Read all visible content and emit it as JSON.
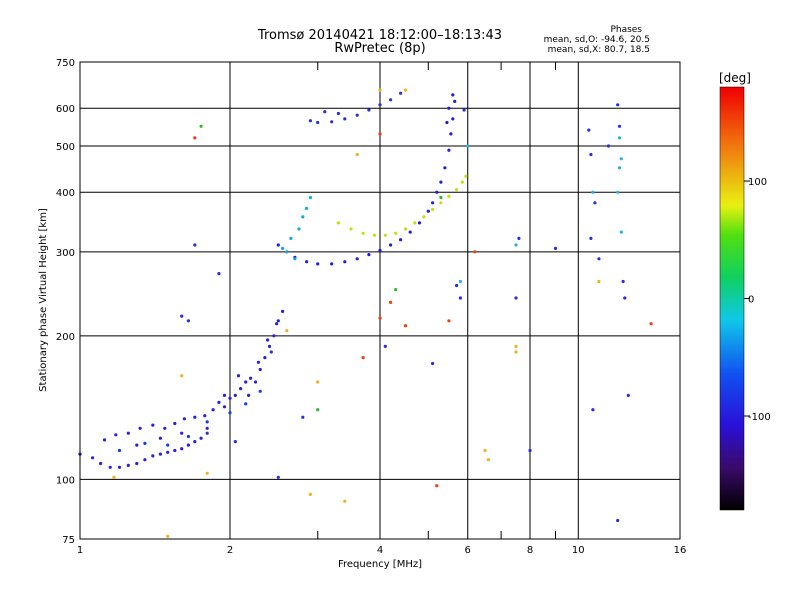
{
  "chart_data": {
    "type": "scatter",
    "title": "Tromsø 20140421 18:12:00–18:13:43",
    "subtitle": "RwPretec (8p)",
    "xlabel": "Frequency [MHz]",
    "ylabel": "Stationary phase Virtual Height [km]",
    "x_scale": "log",
    "y_scale": "log",
    "xlim": [
      1,
      16
    ],
    "ylim": [
      75,
      750
    ],
    "x_ticks": [
      1,
      2,
      4,
      6,
      8,
      10,
      16
    ],
    "x_tick_labels": [
      "1",
      "2",
      "4",
      "6",
      "8",
      "10",
      "16"
    ],
    "x_minor": [
      3,
      5,
      7,
      9
    ],
    "y_ticks": [
      75,
      100,
      200,
      300,
      400,
      500,
      600,
      750
    ],
    "y_tick_labels": [
      "75",
      "100",
      "200",
      "300",
      "400",
      "500",
      "600",
      "750"
    ],
    "grid": true,
    "phases": {
      "header": "Phases",
      "o_mode": "mean, sd,O: -94.6, 20.5",
      "x_mode": "mean, sd,X:  80.7, 18.5"
    },
    "colorbar": {
      "label": "[deg]",
      "range": [
        -180,
        180
      ],
      "ticks": [
        100,
        0,
        -100
      ],
      "tick_labels": [
        "100",
        "0",
        "-100"
      ]
    },
    "series": [
      {
        "color": "#2a1ee0",
        "points": [
          [
            1.0,
            113
          ],
          [
            1.06,
            111
          ],
          [
            1.1,
            108
          ],
          [
            1.15,
            106
          ],
          [
            1.2,
            106
          ],
          [
            1.25,
            107
          ],
          [
            1.3,
            108
          ],
          [
            1.35,
            110
          ],
          [
            1.4,
            112
          ],
          [
            1.45,
            113
          ],
          [
            1.5,
            114
          ],
          [
            1.55,
            115
          ],
          [
            1.6,
            116
          ],
          [
            1.65,
            118
          ],
          [
            1.7,
            120
          ],
          [
            1.75,
            122
          ],
          [
            1.12,
            121
          ],
          [
            1.18,
            124
          ],
          [
            1.25,
            125
          ],
          [
            1.32,
            128
          ],
          [
            1.4,
            130
          ],
          [
            1.48,
            128
          ],
          [
            1.55,
            131
          ],
          [
            1.62,
            134
          ],
          [
            1.7,
            135
          ],
          [
            1.78,
            136
          ],
          [
            1.85,
            140
          ],
          [
            1.9,
            145
          ],
          [
            1.95,
            150
          ],
          [
            2.0,
            148
          ],
          [
            2.05,
            150
          ],
          [
            2.1,
            155
          ],
          [
            2.15,
            160
          ],
          [
            2.2,
            163
          ],
          [
            2.25,
            160
          ],
          [
            2.3,
            170
          ],
          [
            2.35,
            180
          ],
          [
            2.4,
            190
          ],
          [
            2.45,
            200
          ],
          [
            2.5,
            215
          ],
          [
            2.55,
            225
          ],
          [
            1.3,
            118
          ],
          [
            1.45,
            122
          ],
          [
            1.6,
            125
          ],
          [
            1.8,
            128
          ],
          [
            1.95,
            142
          ],
          [
            2.08,
            165
          ],
          [
            2.18,
            150
          ],
          [
            2.28,
            176
          ],
          [
            2.38,
            196
          ],
          [
            2.48,
            212
          ]
        ]
      },
      {
        "color": "#2020d8",
        "points": [
          [
            2.5,
            310
          ],
          [
            2.6,
            300
          ],
          [
            2.7,
            292
          ],
          [
            2.85,
            286
          ],
          [
            3.0,
            283
          ],
          [
            3.2,
            283
          ],
          [
            3.4,
            286
          ],
          [
            3.6,
            290
          ],
          [
            3.8,
            296
          ],
          [
            4.0,
            302
          ],
          [
            4.2,
            310
          ],
          [
            4.4,
            318
          ],
          [
            4.6,
            330
          ],
          [
            4.8,
            345
          ],
          [
            5.0,
            365
          ],
          [
            5.1,
            380
          ],
          [
            5.2,
            400
          ],
          [
            5.3,
            420
          ],
          [
            5.4,
            450
          ],
          [
            5.5,
            490
          ],
          [
            5.55,
            530
          ],
          [
            5.6,
            570
          ],
          [
            5.65,
            620
          ],
          [
            5.6,
            640
          ],
          [
            5.5,
            600
          ],
          [
            5.45,
            560
          ]
        ]
      },
      {
        "color": "#2a30d0",
        "points": [
          [
            2.9,
            565
          ],
          [
            3.0,
            560
          ],
          [
            3.2,
            562
          ],
          [
            3.4,
            570
          ],
          [
            3.6,
            580
          ],
          [
            3.8,
            595
          ],
          [
            4.0,
            610
          ],
          [
            4.2,
            625
          ],
          [
            4.4,
            645
          ],
          [
            3.1,
            590
          ],
          [
            3.3,
            585
          ]
        ]
      },
      {
        "color": "#12a8e0",
        "points": [
          [
            2.55,
            305
          ],
          [
            2.65,
            320
          ],
          [
            2.75,
            335
          ],
          [
            2.8,
            355
          ],
          [
            2.85,
            370
          ],
          [
            2.9,
            390
          ],
          [
            2.6,
            300
          ],
          [
            2.7,
            290
          ]
        ]
      },
      {
        "color": "#c8e00a",
        "points": [
          [
            3.3,
            345
          ],
          [
            3.5,
            335
          ],
          [
            3.7,
            328
          ],
          [
            3.9,
            325
          ],
          [
            4.1,
            325
          ],
          [
            4.3,
            328
          ],
          [
            4.5,
            335
          ],
          [
            4.7,
            345
          ],
          [
            4.9,
            355
          ],
          [
            5.1,
            368
          ],
          [
            5.3,
            380
          ],
          [
            5.5,
            392
          ],
          [
            5.7,
            405
          ],
          [
            5.85,
            420
          ],
          [
            5.95,
            432
          ]
        ]
      },
      {
        "color": "#1040e0",
        "points": [
          [
            1.2,
            115
          ],
          [
            1.35,
            119
          ],
          [
            1.5,
            118
          ],
          [
            1.65,
            123
          ],
          [
            1.8,
            132
          ],
          [
            2.0,
            138
          ],
          [
            2.15,
            144
          ],
          [
            2.3,
            153
          ],
          [
            2.42,
            185
          ]
        ]
      },
      {
        "color": "#f0b020",
        "points": [
          [
            1.17,
            101
          ],
          [
            1.5,
            76
          ],
          [
            1.8,
            103
          ],
          [
            2.6,
            205
          ],
          [
            2.9,
            93
          ],
          [
            3.4,
            90
          ],
          [
            3.6,
            480
          ],
          [
            4.0,
            655
          ],
          [
            4.5,
            655
          ],
          [
            6.5,
            115
          ],
          [
            6.6,
            110
          ],
          [
            7.5,
            190
          ],
          [
            7.5,
            185
          ],
          [
            11.0,
            260
          ],
          [
            3.0,
            160
          ],
          [
            1.6,
            165
          ]
        ]
      },
      {
        "color": "#e84010",
        "points": [
          [
            4.0,
            218
          ],
          [
            4.2,
            235
          ],
          [
            4.5,
            210
          ],
          [
            5.2,
            97
          ],
          [
            5.5,
            215
          ],
          [
            6.2,
            300
          ],
          [
            14.0,
            212
          ],
          [
            4.0,
            530
          ],
          [
            3.7,
            180
          ],
          [
            1.7,
            520
          ]
        ]
      },
      {
        "color": "#28b830",
        "points": [
          [
            1.75,
            550
          ],
          [
            3.0,
            140
          ],
          [
            5.3,
            390
          ],
          [
            4.3,
            250
          ]
        ]
      },
      {
        "color": "#2a2ae8",
        "points": [
          [
            1.6,
            220
          ],
          [
            1.65,
            215
          ],
          [
            1.7,
            310
          ],
          [
            1.8,
            125
          ],
          [
            1.9,
            270
          ],
          [
            2.05,
            120
          ],
          [
            2.5,
            101
          ],
          [
            2.8,
            135
          ],
          [
            4.1,
            190
          ],
          [
            5.1,
            175
          ],
          [
            5.8,
            240
          ],
          [
            7.5,
            240
          ],
          [
            7.6,
            320
          ],
          [
            8.0,
            115
          ],
          [
            9.0,
            305
          ],
          [
            10.5,
            540
          ],
          [
            10.6,
            480
          ],
          [
            10.8,
            380
          ],
          [
            11.0,
            290
          ],
          [
            11.5,
            500
          ],
          [
            12.0,
            610
          ],
          [
            12.1,
            550
          ],
          [
            12.3,
            260
          ],
          [
            12.4,
            240
          ],
          [
            12.6,
            150
          ],
          [
            10.7,
            140
          ],
          [
            12.0,
            82
          ],
          [
            5.7,
            255
          ],
          [
            5.9,
            595
          ],
          [
            10.6,
            320
          ]
        ]
      },
      {
        "color": "#2ab0e0",
        "points": [
          [
            7.5,
            310
          ],
          [
            10.7,
            400
          ],
          [
            12.0,
            400
          ],
          [
            12.1,
            450
          ],
          [
            12.1,
            520
          ],
          [
            12.2,
            470
          ],
          [
            12.2,
            330
          ],
          [
            6.0,
            500
          ],
          [
            5.8,
            260
          ]
        ]
      }
    ]
  }
}
